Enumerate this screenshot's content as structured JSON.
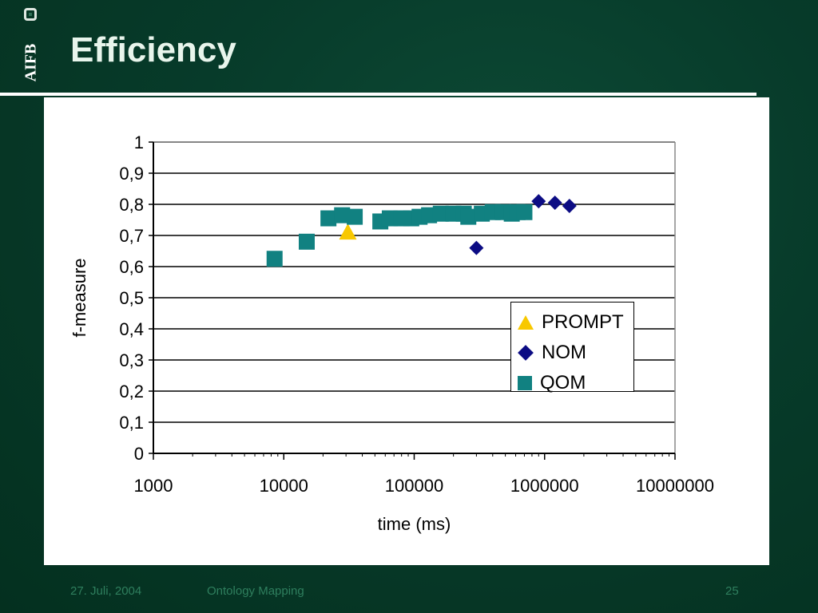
{
  "header": {
    "logo_text": "AIFB",
    "title": "Efficiency"
  },
  "chart_data": {
    "type": "scatter",
    "xscale": "log",
    "xlim": [
      1000,
      10000000
    ],
    "ylim": [
      0,
      1
    ],
    "xlabel": "time (ms)",
    "ylabel": "f-measure",
    "x_ticks": [
      "1000",
      "10000",
      "100000",
      "1000000",
      "10000000"
    ],
    "y_ticks": [
      "0",
      "0,1",
      "0,2",
      "0,3",
      "0,4",
      "0,5",
      "0,6",
      "0,7",
      "0,8",
      "0,9",
      "1"
    ],
    "grid": "horizontal",
    "legend_position": "right-center",
    "series": [
      {
        "name": "PROMPT",
        "marker": "triangle",
        "color": "#f8c800",
        "points": [
          [
            31000,
            0.71
          ]
        ]
      },
      {
        "name": "NOM",
        "marker": "diamond",
        "color": "#0c0c84",
        "points": [
          [
            300000,
            0.66
          ],
          [
            900000,
            0.81
          ],
          [
            1200000,
            0.805
          ],
          [
            1550000,
            0.795
          ]
        ]
      },
      {
        "name": "QOM",
        "marker": "square",
        "color": "#118181",
        "points": [
          [
            8500,
            0.625
          ],
          [
            15000,
            0.68
          ],
          [
            22000,
            0.755
          ],
          [
            28000,
            0.765
          ],
          [
            35000,
            0.76
          ],
          [
            55000,
            0.745
          ],
          [
            65000,
            0.755
          ],
          [
            80000,
            0.755
          ],
          [
            95000,
            0.755
          ],
          [
            110000,
            0.76
          ],
          [
            130000,
            0.765
          ],
          [
            160000,
            0.77
          ],
          [
            200000,
            0.77
          ],
          [
            240000,
            0.77
          ],
          [
            260000,
            0.76
          ],
          [
            330000,
            0.77
          ],
          [
            400000,
            0.775
          ],
          [
            480000,
            0.775
          ],
          [
            560000,
            0.77
          ],
          [
            620000,
            0.775
          ],
          [
            700000,
            0.775
          ]
        ]
      }
    ]
  },
  "footer": {
    "date": "27. Juli, 2004",
    "topic": "Ontology Mapping",
    "page": "25"
  }
}
